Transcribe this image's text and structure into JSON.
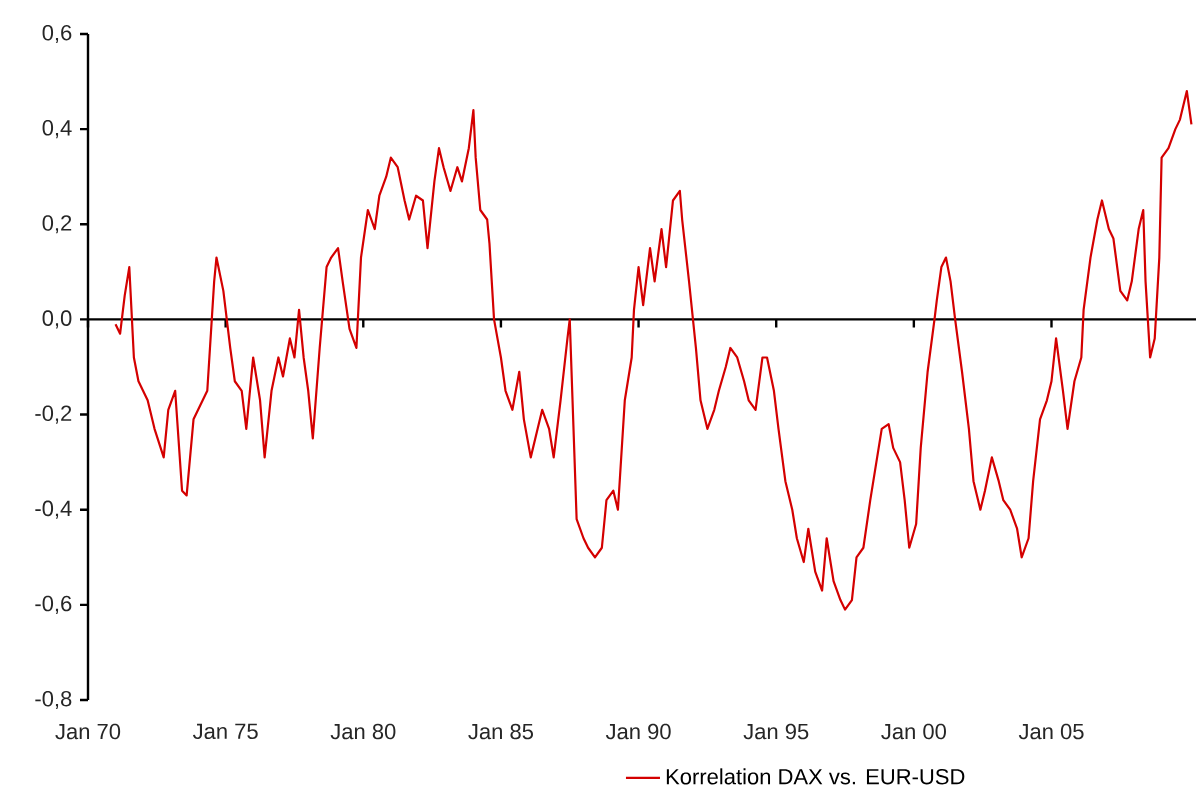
{
  "chart_data": {
    "type": "line",
    "xlim": [
      "1970-01",
      "2010-04"
    ],
    "ylim": [
      -0.8,
      0.6
    ],
    "xticks": [
      {
        "value": "1970-01",
        "label": "Jan 70"
      },
      {
        "value": "1975-01",
        "label": "Jan 75"
      },
      {
        "value": "1980-01",
        "label": "Jan 80"
      },
      {
        "value": "1985-01",
        "label": "Jan 85"
      },
      {
        "value": "1990-01",
        "label": "Jan 90"
      },
      {
        "value": "1995-01",
        "label": "Jan 95"
      },
      {
        "value": "2000-01",
        "label": "Jan 00"
      },
      {
        "value": "2005-01",
        "label": "Jan 05"
      }
    ],
    "yticks": [
      {
        "value": -0.8,
        "label": "-0,8"
      },
      {
        "value": -0.6,
        "label": "-0,6"
      },
      {
        "value": -0.4,
        "label": "-0,4"
      },
      {
        "value": -0.2,
        "label": "-0,2"
      },
      {
        "value": 0,
        "label": "0,0"
      },
      {
        "value": 0.2,
        "label": "0,2"
      },
      {
        "value": 0.4,
        "label": "0,4"
      },
      {
        "value": 0.6,
        "label": "0,6"
      }
    ],
    "legend": "bottom",
    "series": [
      {
        "name": "Korrelation DAX vs. EUR-USD",
        "color": "#d40000",
        "x": [
          "1971-01",
          "1971-03",
          "1971-05",
          "1971-07",
          "1971-09",
          "1971-11",
          "1972-03",
          "1972-06",
          "1972-10",
          "1972-12",
          "1973-03",
          "1973-06",
          "1973-08",
          "1973-11",
          "1974-01",
          "1974-05",
          "1974-08",
          "1974-09",
          "1974-12",
          "1975-03",
          "1975-05",
          "1975-08",
          "1975-10",
          "1976-01",
          "1976-04",
          "1976-06",
          "1976-09",
          "1976-12",
          "1977-02",
          "1977-05",
          "1977-07",
          "1977-09",
          "1977-11",
          "1978-01",
          "1978-03",
          "1978-06",
          "1978-09",
          "1978-11",
          "1979-02",
          "1979-04",
          "1979-07",
          "1979-10",
          "1979-12",
          "1980-03",
          "1980-06",
          "1980-08",
          "1980-11",
          "1981-01",
          "1981-04",
          "1981-07",
          "1981-09",
          "1981-12",
          "1982-03",
          "1982-05",
          "1982-08",
          "1982-10",
          "1982-12",
          "1983-03",
          "1983-06",
          "1983-08",
          "1983-11",
          "1984-01",
          "1984-02",
          "1984-04",
          "1984-07",
          "1984-08",
          "1984-10",
          "1985-01",
          "1985-03",
          "1985-06",
          "1985-09",
          "1985-11",
          "1986-02",
          "1986-05",
          "1986-07",
          "1986-10",
          "1986-12",
          "1987-03",
          "1987-06",
          "1987-07",
          "1987-10",
          "1988-01",
          "1988-03",
          "1988-06",
          "1988-09",
          "1988-11",
          "1989-02",
          "1989-04",
          "1989-07",
          "1989-10",
          "1989-11",
          "1990-01",
          "1990-03",
          "1990-06",
          "1990-08",
          "1990-11",
          "1991-01",
          "1991-04",
          "1991-07",
          "1991-08",
          "1991-11",
          "1992-02",
          "1992-04",
          "1992-07",
          "1992-10",
          "1992-12",
          "1993-03",
          "1993-05",
          "1993-08",
          "1993-11",
          "1994-01",
          "1994-04",
          "1994-07",
          "1994-09",
          "1994-12",
          "1995-02",
          "1995-05",
          "1995-08",
          "1995-10",
          "1996-01",
          "1996-03",
          "1996-06",
          "1996-09",
          "1996-11",
          "1997-02",
          "1997-05",
          "1997-07",
          "1997-10",
          "1997-12",
          "1998-03",
          "1998-06",
          "1998-08",
          "1998-11",
          "1999-02",
          "1999-04",
          "1999-07",
          "1999-09",
          "1999-11",
          "2000-02",
          "2000-04",
          "2000-07",
          "2000-10",
          "2000-11",
          "2001-01",
          "2001-03",
          "2001-05",
          "2001-07",
          "2001-10",
          "2002-01",
          "2002-03",
          "2002-06",
          "2002-08",
          "2002-11",
          "2003-02",
          "2003-04",
          "2003-07",
          "2003-10",
          "2003-12",
          "2004-03",
          "2004-05",
          "2004-08",
          "2004-11",
          "2005-01",
          "2005-03",
          "2005-06",
          "2005-08",
          "2005-11",
          "2006-02",
          "2006-03",
          "2006-06",
          "2006-09",
          "2006-11",
          "2007-02",
          "2007-04",
          "2007-07",
          "2007-10",
          "2007-12",
          "2008-03",
          "2008-05",
          "2008-06",
          "2008-08",
          "2008-10",
          "2008-12",
          "2009-01",
          "2009-04",
          "2009-07",
          "2009-09",
          "2009-12",
          "2010-02"
        ],
        "values": [
          -0.01,
          -0.03,
          0.05,
          0.11,
          -0.08,
          -0.13,
          -0.17,
          -0.23,
          -0.29,
          -0.19,
          -0.15,
          -0.36,
          -0.37,
          -0.21,
          -0.19,
          -0.15,
          0.08,
          0.13,
          0.06,
          -0.06,
          -0.13,
          -0.15,
          -0.23,
          -0.08,
          -0.17,
          -0.29,
          -0.15,
          -0.08,
          -0.12,
          -0.04,
          -0.08,
          0.02,
          -0.08,
          -0.15,
          -0.25,
          -0.06,
          0.11,
          0.13,
          0.15,
          0.08,
          -0.02,
          -0.06,
          0.13,
          0.23,
          0.19,
          0.26,
          0.3,
          0.34,
          0.32,
          0.25,
          0.21,
          0.26,
          0.25,
          0.15,
          0.29,
          0.36,
          0.32,
          0.27,
          0.32,
          0.29,
          0.36,
          0.44,
          0.34,
          0.23,
          0.21,
          0.16,
          0,
          -0.08,
          -0.15,
          -0.19,
          -0.11,
          -0.21,
          -0.29,
          -0.23,
          -0.19,
          -0.23,
          -0.29,
          -0.17,
          -0.04,
          0,
          -0.42,
          -0.46,
          -0.48,
          -0.5,
          -0.48,
          -0.38,
          -0.36,
          -0.4,
          -0.17,
          -0.08,
          0.02,
          0.11,
          0.03,
          0.15,
          0.08,
          0.19,
          0.11,
          0.25,
          0.27,
          0.21,
          0.08,
          -0.06,
          -0.17,
          -0.23,
          -0.19,
          -0.15,
          -0.1,
          -0.06,
          -0.08,
          -0.13,
          -0.17,
          -0.19,
          -0.08,
          -0.08,
          -0.15,
          -0.23,
          -0.34,
          -0.4,
          -0.46,
          -0.51,
          -0.44,
          -0.53,
          -0.57,
          -0.46,
          -0.55,
          -0.59,
          -0.61,
          -0.59,
          -0.5,
          -0.48,
          -0.38,
          -0.32,
          -0.23,
          -0.22,
          -0.27,
          -0.3,
          -0.38,
          -0.48,
          -0.43,
          -0.27,
          -0.11,
          0,
          0.04,
          0.11,
          0.13,
          0.08,
          0,
          -0.11,
          -0.23,
          -0.34,
          -0.4,
          -0.36,
          -0.29,
          -0.34,
          -0.38,
          -0.4,
          -0.44,
          -0.5,
          -0.46,
          -0.34,
          -0.21,
          -0.17,
          -0.13,
          -0.04,
          -0.15,
          -0.23,
          -0.13,
          -0.08,
          0.02,
          0.13,
          0.21,
          0.25,
          0.19,
          0.17,
          0.06,
          0.04,
          0.08,
          0.19,
          0.23,
          0.08,
          -0.08,
          -0.04,
          0.13,
          0.34,
          0.36,
          0.4,
          0.42,
          0.48,
          0.41
        ]
      }
    ]
  }
}
